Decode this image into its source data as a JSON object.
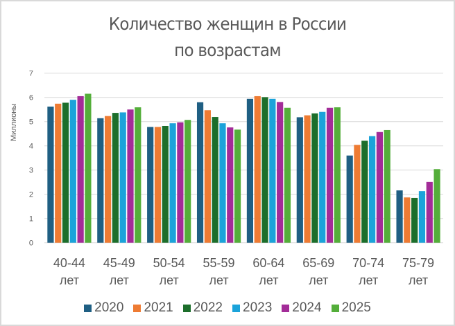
{
  "chart_data": {
    "type": "bar",
    "title": "Количество женщин в России по возрастам",
    "title_lines": [
      "Количество женщин в России",
      "по возрастам"
    ],
    "xlabel": "",
    "ylabel": "Миллионы",
    "ylim": [
      0,
      7
    ],
    "yticks": [
      0,
      1,
      2,
      3,
      4,
      5,
      6,
      7
    ],
    "grid": true,
    "legend_position": "bottom",
    "categories": [
      "40-44 лет",
      "45-49 лет",
      "50-54 лет",
      "55-59 лет",
      "60-64 лет",
      "65-69 лет",
      "70-74 лет",
      "75-79 лет"
    ],
    "category_lines": [
      [
        "40-44",
        "лет"
      ],
      [
        "45-49",
        "лет"
      ],
      [
        "50-54",
        "лет"
      ],
      [
        "55-59",
        "лет"
      ],
      [
        "60-64",
        "лет"
      ],
      [
        "65-69",
        "лет"
      ],
      [
        "70-74",
        "лет"
      ],
      [
        "75-79",
        "лет"
      ]
    ],
    "series": [
      {
        "name": "2020",
        "color": "#1f5f83",
        "values": [
          5.62,
          5.14,
          4.78,
          5.8,
          5.94,
          5.18,
          3.6,
          2.16
        ]
      },
      {
        "name": "2021",
        "color": "#ee7b33",
        "values": [
          5.74,
          5.23,
          4.78,
          5.47,
          6.05,
          5.26,
          4.04,
          1.87
        ]
      },
      {
        "name": "2022",
        "color": "#1c6e2b",
        "values": [
          5.78,
          5.36,
          4.82,
          5.19,
          6.01,
          5.34,
          4.21,
          1.85
        ]
      },
      {
        "name": "2023",
        "color": "#1ba3da",
        "values": [
          5.9,
          5.38,
          4.93,
          4.93,
          5.94,
          5.4,
          4.4,
          2.13
        ]
      },
      {
        "name": "2024",
        "color": "#a32c98",
        "values": [
          6.05,
          5.5,
          4.97,
          4.76,
          5.81,
          5.57,
          4.57,
          2.51
        ]
      },
      {
        "name": "2025",
        "color": "#54ae3a",
        "values": [
          6.15,
          5.59,
          5.07,
          4.67,
          5.57,
          5.59,
          4.65,
          3.04
        ]
      }
    ]
  },
  "colors": {
    "text": "#595959",
    "gridline": "#d9d9d9",
    "border": "#d9d9d9"
  }
}
